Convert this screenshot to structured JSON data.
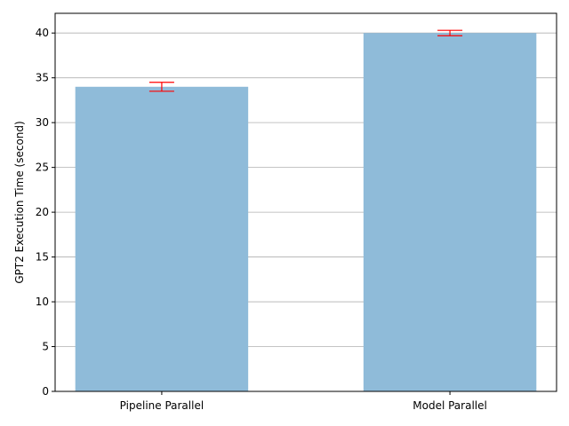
{
  "chart_data": {
    "type": "bar",
    "categories": [
      "Pipeline Parallel",
      "Model Parallel"
    ],
    "values": [
      34.0,
      40.0
    ],
    "errors": [
      0.5,
      0.3
    ],
    "title": "",
    "xlabel": "",
    "ylabel": "GPT2 Execution Time (second)",
    "ylim": [
      0,
      42.2
    ],
    "yticks": [
      0,
      5,
      10,
      15,
      20,
      25,
      30,
      35,
      40
    ],
    "grid": "y-major",
    "colors": {
      "bar": "#8fbbd9",
      "error": "#ff0000",
      "grid": "#b0b0b0",
      "axis": "#000000"
    }
  }
}
